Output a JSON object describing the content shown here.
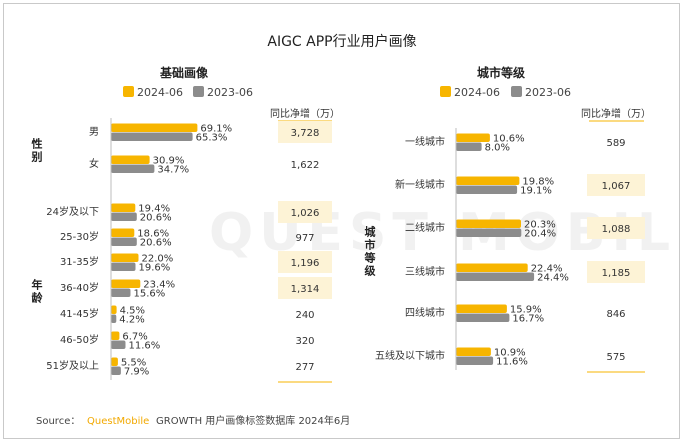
{
  "title": "AIGC APP行业用户画像",
  "legend": {
    "a": "2024-06",
    "b": "2023-06"
  },
  "colors": {
    "a": "#f7b500",
    "b": "#8c8c8c",
    "highlight": "#fdf3d6",
    "accentLine": "#f7b500"
  },
  "net_header": "同比净增（万）",
  "source": {
    "prefix": "Source：",
    "brand": "QuestMobile",
    "rest": "GROWTH 用户画像标签数据库 2024年6月"
  },
  "watermark": "QUEST MOBILE",
  "chart_data": [
    {
      "type": "bar",
      "title": "基础画像",
      "series": [
        {
          "name": "2024-06"
        },
        {
          "name": "2023-06"
        }
      ],
      "groups": [
        {
          "name": "性别",
          "rows": [
            {
              "category": "男",
              "a": 69.1,
              "b": 65.3,
              "net": "3,728",
              "hl": true
            },
            {
              "category": "女",
              "a": 30.9,
              "b": 34.7,
              "net": "1,622",
              "hl": false
            }
          ]
        },
        {
          "name": "年龄",
          "rows": [
            {
              "category": "24岁及以下",
              "a": 19.4,
              "b": 20.6,
              "net": "1,026",
              "hl": true
            },
            {
              "category": "25-30岁",
              "a": 18.6,
              "b": 20.6,
              "net": "977",
              "hl": false
            },
            {
              "category": "31-35岁",
              "a": 22.0,
              "b": 19.6,
              "net": "1,196",
              "hl": true
            },
            {
              "category": "36-40岁",
              "a": 23.4,
              "b": 15.6,
              "net": "1,314",
              "hl": true
            },
            {
              "category": "41-45岁",
              "a": 4.5,
              "b": 4.2,
              "net": "240",
              "hl": false
            },
            {
              "category": "46-50岁",
              "a": 6.7,
              "b": 11.6,
              "net": "320",
              "hl": false
            },
            {
              "category": "51岁及以上",
              "a": 5.5,
              "b": 7.9,
              "net": "277",
              "hl": false
            }
          ]
        }
      ]
    },
    {
      "type": "bar",
      "title": "城市等级",
      "series": [
        {
          "name": "2024-06"
        },
        {
          "name": "2023-06"
        }
      ],
      "groups": [
        {
          "name": "城市等级",
          "rows": [
            {
              "category": "一线城市",
              "a": 10.6,
              "b": 8.0,
              "net": "589",
              "hl": false
            },
            {
              "category": "新一线城市",
              "a": 19.8,
              "b": 19.1,
              "net": "1,067",
              "hl": true
            },
            {
              "category": "二线城市",
              "a": 20.3,
              "b": 20.4,
              "net": "1,088",
              "hl": true
            },
            {
              "category": "三线城市",
              "a": 22.4,
              "b": 24.4,
              "net": "1,185",
              "hl": true
            },
            {
              "category": "四线城市",
              "a": 15.9,
              "b": 16.7,
              "net": "846",
              "hl": false
            },
            {
              "category": "五线及以下城市",
              "a": 10.9,
              "b": 11.6,
              "net": "575",
              "hl": false
            }
          ]
        }
      ]
    }
  ]
}
